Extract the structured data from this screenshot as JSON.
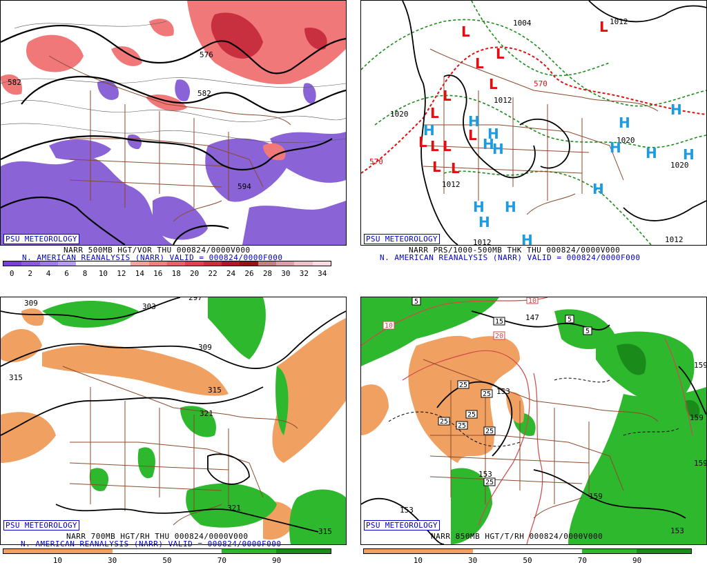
{
  "watermark": "PSU METEOROLOGY",
  "panels": {
    "p1": {
      "caption": "NARR 500MB HGT/VOR THU 000824/0000V000",
      "subcaption": "N. AMERICAN REANALYSIS (NARR) VALID = 000824/0000F000",
      "contour_labels": [
        "582",
        "576",
        "582",
        "594"
      ],
      "vort_ticks": [
        "0",
        "2",
        "4",
        "6",
        "8",
        "10",
        "12",
        "14",
        "16",
        "18",
        "20",
        "22",
        "24",
        "26",
        "28",
        "30",
        "32",
        "34"
      ],
      "vort_colors": [
        "#7c3ed8",
        "#8e57e0",
        "#a07ae6",
        "#b79ced",
        "#ffffff",
        "#ffffff",
        "#ffffff",
        "#f6a0a0",
        "#f08080",
        "#e86068",
        "#e04050",
        "#c83040",
        "#b01828",
        "#981018",
        "#c08080",
        "#d8a0a8",
        "#f0c0c8",
        "#ffd8e0"
      ]
    },
    "p2": {
      "caption": "NARR PRS/1000-500MB THK THU 000824/0000V000",
      "subcaption": "N. AMERICAN REANALYSIS (NARR) VALID = 000824/0000F000",
      "labels": [
        "1004",
        "1012",
        "1020",
        "1012",
        "1012",
        "1020",
        "1020",
        "1012",
        "570",
        "570",
        "1012",
        "1012"
      ],
      "low_symbol": "L",
      "high_symbol": "H"
    },
    "p3": {
      "caption": "NARR 700MB HGT/RH THU 000824/0000V000",
      "subcaption": "N. AMERICAN REANALYSIS (NARR) VALID = 000824/0000F000",
      "contour_labels": [
        "309",
        "303",
        "297",
        "309",
        "315",
        "315",
        "321",
        "321",
        "315"
      ],
      "rh_ticks": [
        "10",
        "30",
        "50",
        "70",
        "90"
      ]
    },
    "p4": {
      "caption": "NARR 850MB HGT/T/RH 000824/0000V000",
      "contour_labels": [
        "147",
        "153",
        "153",
        "159",
        "159",
        "159",
        "153",
        "153",
        "159"
      ],
      "temp_labels": [
        "5",
        "10",
        "15",
        "20",
        "5",
        "5",
        "25",
        "25",
        "25",
        "25",
        "25",
        "25",
        "25",
        "10"
      ],
      "rh_ticks": [
        "10",
        "30",
        "50",
        "70",
        "90"
      ]
    }
  },
  "colors": {
    "brown": "#8b4a2b",
    "orange": "#f0a060",
    "green": "#2eb82e",
    "purple": "#8a63d6",
    "red": "#e02020",
    "blue": "#1e9be0"
  }
}
